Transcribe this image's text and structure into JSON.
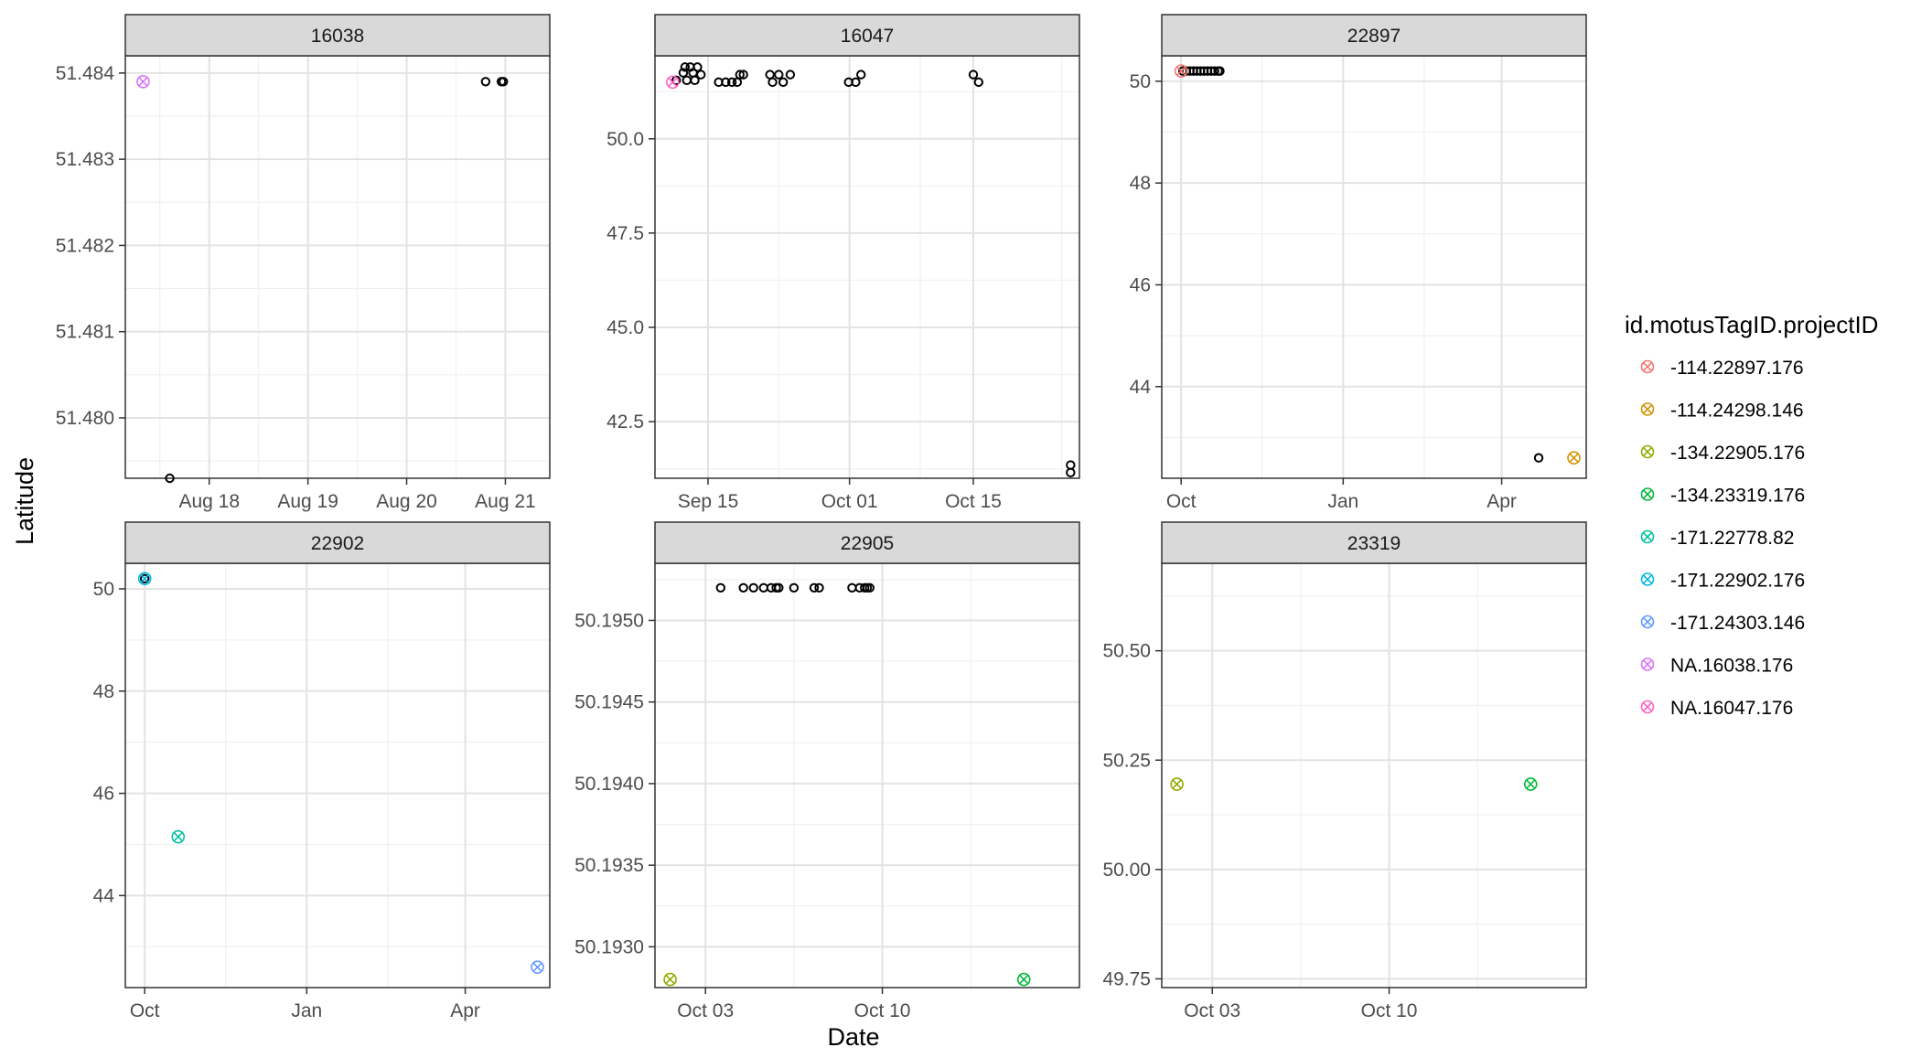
{
  "chart_data": {
    "type": "scatter",
    "facet_labels_note": "faceted scatter of detections by tag",
    "xlabel": "Date",
    "ylabel": "Latitude",
    "legend": {
      "title": "id.motusTagID.projectID",
      "placement": "right",
      "entries": [
        {
          "name": "-114.22897.176",
          "color": "#F8766D"
        },
        {
          "name": "-114.24298.146",
          "color": "#D39200"
        },
        {
          "name": "-134.22905.176",
          "color": "#93AA00"
        },
        {
          "name": "-134.23319.176",
          "color": "#00BA38"
        },
        {
          "name": "-171.22778.82",
          "color": "#00C19F"
        },
        {
          "name": "-171.22902.176",
          "color": "#00B9E3"
        },
        {
          "name": "-171.24303.146",
          "color": "#619CFF"
        },
        {
          "name": "NA.16038.176",
          "color": "#DB72FB"
        },
        {
          "name": "NA.16047.176",
          "color": "#FF61C3"
        }
      ]
    },
    "facets": [
      {
        "strip": "16038",
        "xlim": [
          0,
          4.3
        ],
        "ylim": [
          51.4793,
          51.4842
        ],
        "x_ticks": [
          {
            "x": 0.85,
            "label": "Aug 18"
          },
          {
            "x": 1.85,
            "label": "Aug 19"
          },
          {
            "x": 2.85,
            "label": "Aug 20"
          },
          {
            "x": 3.85,
            "label": "Aug 21"
          }
        ],
        "y_ticks": [
          {
            "y": 51.48,
            "label": "51.480"
          },
          {
            "y": 51.481,
            "label": "51.481"
          },
          {
            "y": 51.482,
            "label": "51.482"
          },
          {
            "y": 51.483,
            "label": "51.483"
          },
          {
            "y": 51.484,
            "label": "51.484"
          }
        ],
        "detections": [
          {
            "x": 0.45,
            "y": 51.4793
          },
          {
            "x": 3.65,
            "y": 51.4839
          },
          {
            "x": 3.81,
            "y": 51.4839
          },
          {
            "x": 3.83,
            "y": 51.4839
          }
        ],
        "tags": [
          {
            "x": 0.18,
            "y": 51.4839,
            "series": "NA.16038.176"
          }
        ]
      },
      {
        "strip": "16047",
        "xlim": [
          0,
          48
        ],
        "ylim": [
          41.0,
          52.2
        ],
        "x_ticks": [
          {
            "x": 6,
            "label": "Sep 15"
          },
          {
            "x": 22,
            "label": "Oct 01"
          },
          {
            "x": 36,
            "label": "Oct 15"
          }
        ],
        "y_ticks": [
          {
            "y": 42.5,
            "label": "42.5"
          },
          {
            "y": 45.0,
            "label": "45.0"
          },
          {
            "y": 47.5,
            "label": "47.5"
          },
          {
            "y": 50.0,
            "label": "50.0"
          }
        ],
        "detections": [
          {
            "x": 2.4,
            "y": 51.55
          },
          {
            "x": 3.2,
            "y": 51.75
          },
          {
            "x": 3.4,
            "y": 51.9
          },
          {
            "x": 3.6,
            "y": 51.55
          },
          {
            "x": 4.0,
            "y": 51.9
          },
          {
            "x": 4.3,
            "y": 51.75
          },
          {
            "x": 4.5,
            "y": 51.55
          },
          {
            "x": 4.8,
            "y": 51.9
          },
          {
            "x": 5.2,
            "y": 51.7
          },
          {
            "x": 7.2,
            "y": 51.5
          },
          {
            "x": 8.0,
            "y": 51.5
          },
          {
            "x": 8.7,
            "y": 51.5
          },
          {
            "x": 9.3,
            "y": 51.5
          },
          {
            "x": 9.6,
            "y": 51.7
          },
          {
            "x": 10.0,
            "y": 51.7
          },
          {
            "x": 13.0,
            "y": 51.7
          },
          {
            "x": 13.3,
            "y": 51.5
          },
          {
            "x": 14.0,
            "y": 51.7
          },
          {
            "x": 14.5,
            "y": 51.5
          },
          {
            "x": 15.3,
            "y": 51.7
          },
          {
            "x": 21.9,
            "y": 51.5
          },
          {
            "x": 22.7,
            "y": 51.5
          },
          {
            "x": 23.3,
            "y": 51.7
          },
          {
            "x": 36.0,
            "y": 51.7
          },
          {
            "x": 36.6,
            "y": 51.5
          },
          {
            "x": 47.0,
            "y": 41.35
          },
          {
            "x": 47.0,
            "y": 41.15
          }
        ],
        "tags": [
          {
            "x": 2.0,
            "y": 51.5,
            "series": "NA.16047.176"
          }
        ]
      },
      {
        "strip": "22897",
        "xlim": [
          0,
          241
        ],
        "ylim": [
          42.2,
          50.5
        ],
        "x_ticks": [
          {
            "x": 11,
            "label": "Oct"
          },
          {
            "x": 103,
            "label": "Jan"
          },
          {
            "x": 193,
            "label": "Apr"
          }
        ],
        "y_ticks": [
          {
            "y": 44,
            "label": "44"
          },
          {
            "y": 46,
            "label": "46"
          },
          {
            "y": 48,
            "label": "48"
          },
          {
            "y": 50,
            "label": "50"
          }
        ],
        "detections": [
          {
            "x": 12,
            "y": 50.2
          },
          {
            "x": 14,
            "y": 50.2
          },
          {
            "x": 16,
            "y": 50.2
          },
          {
            "x": 18,
            "y": 50.2
          },
          {
            "x": 20,
            "y": 50.2
          },
          {
            "x": 22,
            "y": 50.2
          },
          {
            "x": 24,
            "y": 50.2
          },
          {
            "x": 26,
            "y": 50.2
          },
          {
            "x": 28,
            "y": 50.2
          },
          {
            "x": 30,
            "y": 50.2
          },
          {
            "x": 32,
            "y": 50.2
          },
          {
            "x": 33,
            "y": 50.2
          },
          {
            "x": 214,
            "y": 42.6
          }
        ],
        "tags": [
          {
            "x": 11,
            "y": 50.2,
            "series": "-114.22897.176"
          },
          {
            "x": 234,
            "y": 42.6,
            "series": "-114.24298.146"
          }
        ]
      },
      {
        "strip": "22902",
        "xlim": [
          0,
          241
        ],
        "ylim": [
          42.2,
          50.5
        ],
        "x_ticks": [
          {
            "x": 11,
            "label": "Oct"
          },
          {
            "x": 103,
            "label": "Jan"
          },
          {
            "x": 193,
            "label": "Apr"
          }
        ],
        "y_ticks": [
          {
            "y": 44,
            "label": "44"
          },
          {
            "y": 46,
            "label": "46"
          },
          {
            "y": 48,
            "label": "48"
          },
          {
            "y": 50,
            "label": "50"
          }
        ],
        "detections": [
          {
            "x": 11,
            "y": 50.2
          }
        ],
        "tags": [
          {
            "x": 11,
            "y": 50.2,
            "series": "-171.22902.176"
          },
          {
            "x": 30,
            "y": 45.15,
            "series": "-171.22778.82"
          },
          {
            "x": 234,
            "y": 42.6,
            "series": "-171.24303.146"
          }
        ]
      },
      {
        "strip": "22905",
        "xlim": [
          0,
          16.8
        ],
        "ylim": [
          50.19275,
          50.19535
        ],
        "x_ticks": [
          {
            "x": 2,
            "label": "Oct 03"
          },
          {
            "x": 9,
            "label": "Oct 10"
          }
        ],
        "y_ticks": [
          {
            "y": 50.193,
            "label": "50.1930"
          },
          {
            "y": 50.1935,
            "label": "50.1935"
          },
          {
            "y": 50.194,
            "label": "50.1940"
          },
          {
            "y": 50.1945,
            "label": "50.1945"
          },
          {
            "y": 50.195,
            "label": "50.1950"
          }
        ],
        "detections": [
          {
            "x": 2.6,
            "y": 50.1952
          },
          {
            "x": 3.5,
            "y": 50.1952
          },
          {
            "x": 3.9,
            "y": 50.1952
          },
          {
            "x": 4.3,
            "y": 50.1952
          },
          {
            "x": 4.6,
            "y": 50.1952
          },
          {
            "x": 4.8,
            "y": 50.1952
          },
          {
            "x": 4.9,
            "y": 50.1952
          },
          {
            "x": 5.5,
            "y": 50.1952
          },
          {
            "x": 6.3,
            "y": 50.1952
          },
          {
            "x": 6.5,
            "y": 50.1952
          },
          {
            "x": 7.8,
            "y": 50.1952
          },
          {
            "x": 8.1,
            "y": 50.1952
          },
          {
            "x": 8.3,
            "y": 50.1952
          },
          {
            "x": 8.4,
            "y": 50.1952
          },
          {
            "x": 8.5,
            "y": 50.1952
          }
        ],
        "tags": [
          {
            "x": 0.6,
            "y": 50.1928,
            "series": "-134.22905.176"
          },
          {
            "x": 14.6,
            "y": 50.1928,
            "series": "-134.23319.176"
          }
        ]
      },
      {
        "strip": "23319",
        "xlim": [
          0,
          16.8
        ],
        "ylim": [
          49.73,
          50.7
        ],
        "x_ticks": [
          {
            "x": 2,
            "label": "Oct 03"
          },
          {
            "x": 9,
            "label": "Oct 10"
          }
        ],
        "y_ticks": [
          {
            "y": 49.75,
            "label": "49.75"
          },
          {
            "y": 50.0,
            "label": "50.00"
          },
          {
            "y": 50.25,
            "label": "50.25"
          },
          {
            "y": 50.5,
            "label": "50.50"
          }
        ],
        "detections": [],
        "tags": [
          {
            "x": 0.6,
            "y": 50.195,
            "series": "-134.22905.176"
          },
          {
            "x": 14.6,
            "y": 50.195,
            "series": "-134.23319.176"
          }
        ]
      }
    ]
  }
}
